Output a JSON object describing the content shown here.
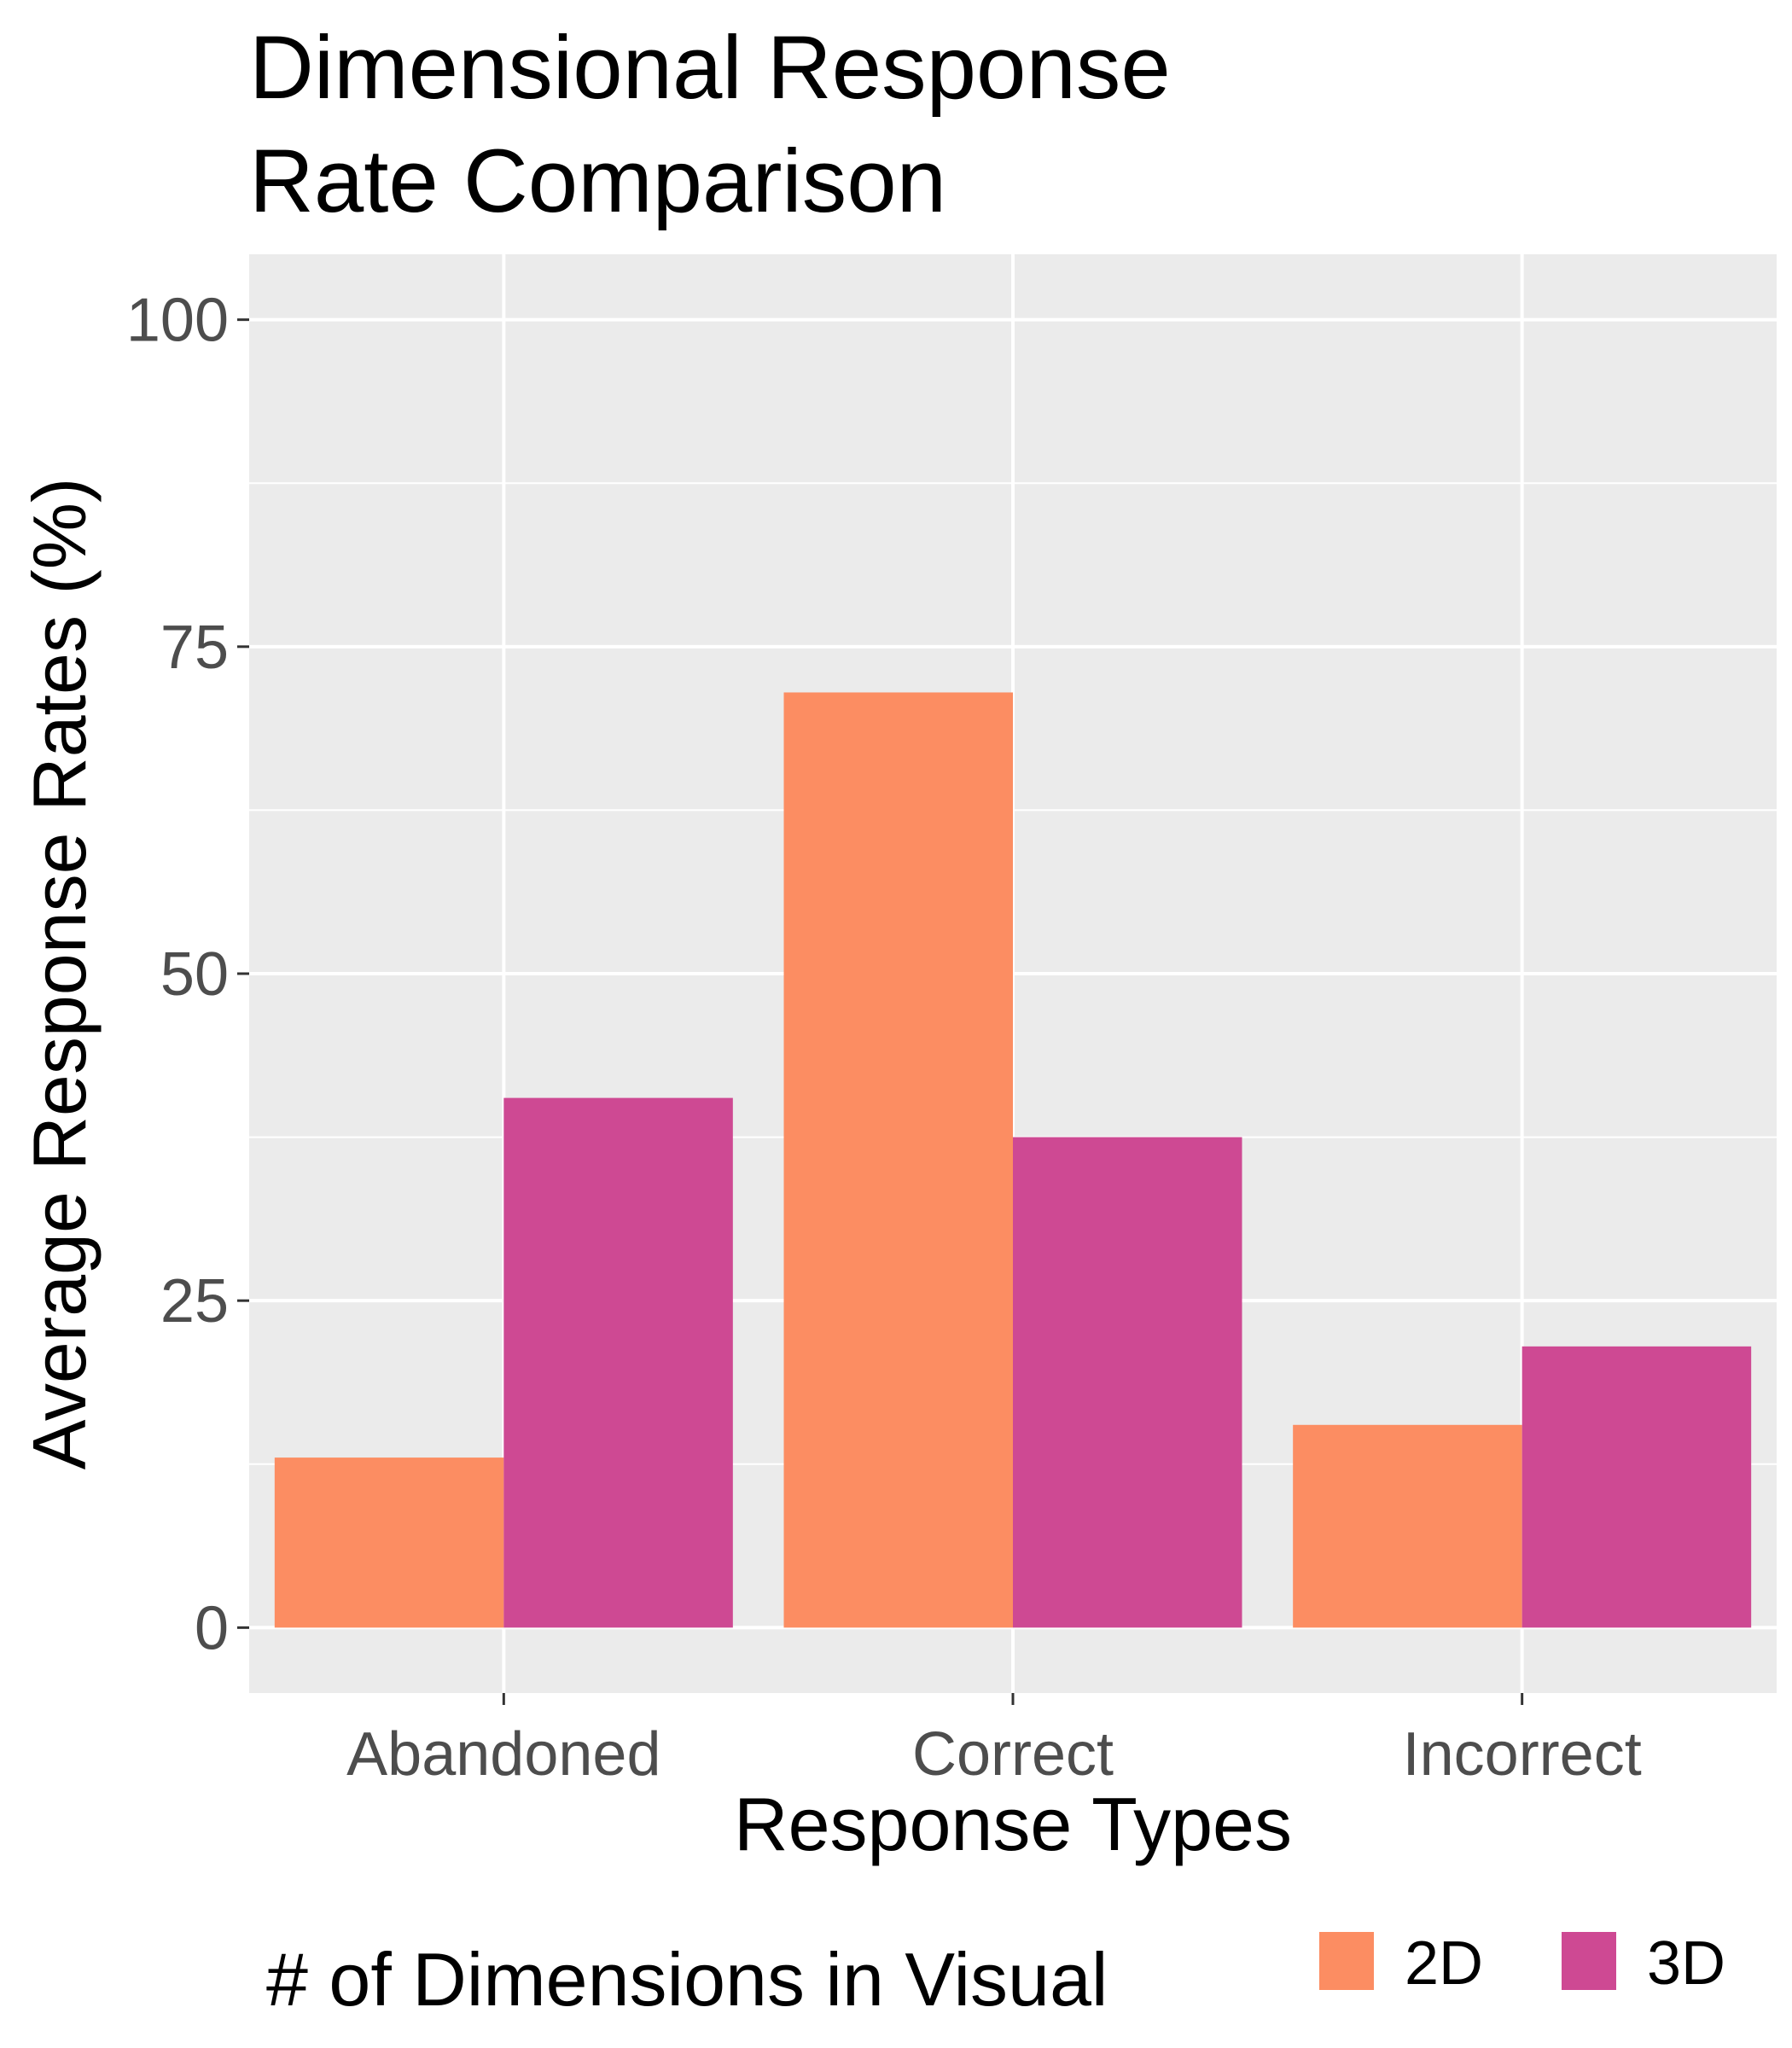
{
  "chart_data": {
    "type": "bar",
    "title_lines": [
      "Dimensional Response",
      "Rate Comparison"
    ],
    "xlabel": "Response Types",
    "ylabel": "Average Response Rates (%)",
    "categories": [
      "Abandoned",
      "Correct",
      "Incorrect"
    ],
    "series": [
      {
        "name": "2D",
        "color": "#FC8D62",
        "values": [
          13,
          71.5,
          15.5
        ]
      },
      {
        "name": "3D",
        "color": "#CE4993",
        "values": [
          40.5,
          37.5,
          21.5
        ]
      }
    ],
    "ylim": [
      -5,
      105
    ],
    "yticks": [
      0,
      25,
      50,
      75,
      100
    ],
    "ytick_labels": [
      "0",
      "25",
      "50",
      "75",
      "100"
    ],
    "grid": true,
    "panel_background": "#EBEBEB",
    "legend": {
      "title": "# of Dimensions in Visual",
      "position": "bottom"
    }
  }
}
